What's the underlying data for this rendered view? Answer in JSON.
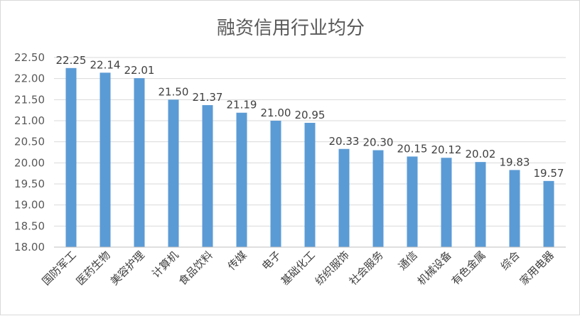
{
  "chart_data": {
    "type": "bar",
    "title": "融资信用行业均分",
    "categories": [
      "国防军工",
      "医药生物",
      "美容护理",
      "计算机",
      "食品饮料",
      "传媒",
      "电子",
      "基础化工",
      "纺织服饰",
      "社会服务",
      "通信",
      "机械设备",
      "有色金属",
      "综合",
      "家用电器"
    ],
    "values": [
      22.25,
      22.14,
      22.01,
      21.5,
      21.37,
      21.19,
      21.0,
      20.95,
      20.33,
      20.3,
      20.15,
      20.12,
      20.02,
      19.83,
      19.57
    ],
    "value_labels": [
      "22.25",
      "22.14",
      "22.01",
      "21.50",
      "21.37",
      "21.19",
      "21.00",
      "20.95",
      "20.33",
      "20.30",
      "20.15",
      "20.12",
      "20.02",
      "19.83",
      "19.57"
    ],
    "ylim": [
      18.0,
      22.5
    ],
    "yticks": [
      "18.00",
      "18.50",
      "19.00",
      "19.50",
      "20.00",
      "20.50",
      "21.00",
      "21.50",
      "22.00",
      "22.50"
    ],
    "grid": true,
    "legend": "none",
    "bar_color": "#5b9bd5",
    "grid_color": "#d9d9d9"
  }
}
